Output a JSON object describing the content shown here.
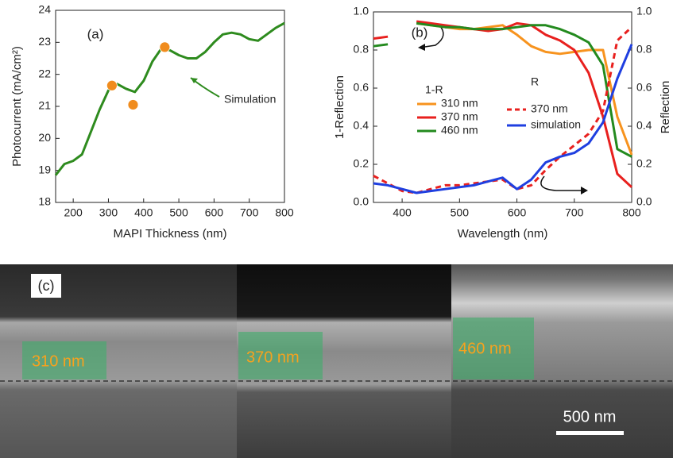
{
  "chart_data": [
    {
      "type": "line",
      "panel_label": "(a)",
      "xlabel": "MAPI Thickness (nm)",
      "ylabel": "Photocurrent (mA/cm²)",
      "xlim": [
        150,
        800
      ],
      "ylim": [
        18,
        24
      ],
      "xticks": [
        200,
        300,
        400,
        500,
        600,
        700,
        800
      ],
      "yticks": [
        18,
        19,
        20,
        21,
        22,
        23,
        24
      ],
      "series": [
        {
          "name": "Simulation",
          "color": "#2e8b1e",
          "style": "line",
          "x": [
            150,
            175,
            200,
            225,
            250,
            275,
            300,
            325,
            350,
            375,
            400,
            425,
            450,
            475,
            500,
            525,
            550,
            575,
            600,
            625,
            650,
            675,
            700,
            725,
            750,
            775,
            800
          ],
          "values": [
            18.85,
            19.2,
            19.3,
            19.5,
            20.2,
            20.9,
            21.5,
            21.7,
            21.55,
            21.45,
            21.8,
            22.4,
            22.8,
            22.75,
            22.6,
            22.5,
            22.5,
            22.7,
            23.0,
            23.25,
            23.3,
            23.25,
            23.1,
            23.05,
            23.25,
            23.45,
            23.6
          ]
        },
        {
          "color": "#f08c1e",
          "style": "markers",
          "x": [
            310,
            370,
            460
          ],
          "values": [
            21.65,
            21.05,
            22.85
          ]
        }
      ]
    },
    {
      "type": "line",
      "panel_label": "(b)",
      "xlabel": "Wavelength (nm)",
      "ylabel": "1-Reflection",
      "y2label": "Reflection",
      "y_legend_title": "1-R",
      "y2_legend_title": "R",
      "xlim": [
        350,
        800
      ],
      "ylim": [
        0,
        1
      ],
      "y2lim": [
        0,
        1
      ],
      "xticks": [
        400,
        500,
        600,
        700,
        800
      ],
      "yticks": [
        {
          "value": 0,
          "label": "0.0"
        },
        0.2,
        0.4,
        0.6,
        0.8,
        {
          "value": 1,
          "label": "1.0"
        }
      ],
      "y2ticks": [
        {
          "value": 0,
          "label": "0.0"
        },
        0.2,
        0.4,
        0.6,
        0.8,
        {
          "value": 1,
          "label": "1.0"
        }
      ],
      "x": [
        350,
        375,
        400,
        425,
        450,
        475,
        500,
        525,
        550,
        575,
        600,
        625,
        650,
        675,
        700,
        725,
        750,
        775,
        800
      ],
      "series": [
        {
          "name": "310 nm",
          "color": "#f7931e",
          "style": "line",
          "values": [
            null,
            null,
            null,
            0.94,
            0.93,
            0.92,
            0.91,
            0.91,
            0.92,
            0.93,
            0.88,
            0.82,
            0.79,
            0.78,
            0.79,
            0.8,
            0.8,
            0.45,
            0.25
          ]
        },
        {
          "name": "370 nm",
          "color": "#e8201e",
          "style": "line",
          "values": [
            0.86,
            0.87,
            null,
            0.95,
            0.94,
            0.93,
            0.92,
            0.91,
            0.9,
            0.91,
            0.94,
            0.93,
            0.88,
            0.85,
            0.8,
            0.68,
            0.45,
            0.15,
            0.08
          ]
        },
        {
          "name": "460 nm",
          "color": "#238a1e",
          "style": "line",
          "values": [
            0.82,
            0.83,
            null,
            0.94,
            0.93,
            0.92,
            0.92,
            0.91,
            0.91,
            0.91,
            0.92,
            0.93,
            0.93,
            0.91,
            0.88,
            0.84,
            0.72,
            0.28,
            0.24
          ]
        },
        {
          "name": "370 nm",
          "color": "#e8201e",
          "style": "line",
          "dash": true,
          "axis": "y2",
          "values": [
            0.14,
            0.1,
            0.06,
            0.05,
            0.07,
            0.09,
            0.09,
            0.1,
            0.11,
            0.12,
            0.07,
            0.09,
            0.17,
            0.24,
            0.3,
            0.36,
            0.48,
            0.85,
            0.92
          ]
        },
        {
          "name": "simulation",
          "color": "#1f3fe0",
          "style": "line",
          "axis": "y2",
          "values": [
            0.1,
            0.09,
            0.07,
            0.05,
            0.06,
            0.07,
            0.08,
            0.09,
            0.11,
            0.13,
            0.07,
            0.12,
            0.21,
            0.24,
            0.26,
            0.31,
            0.42,
            0.65,
            0.83
          ]
        }
      ]
    }
  ],
  "panel_c": {
    "label": "(c)",
    "regions": [
      "310 nm",
      "370 nm",
      "460 nm"
    ],
    "scale_bar": "500 nm"
  }
}
